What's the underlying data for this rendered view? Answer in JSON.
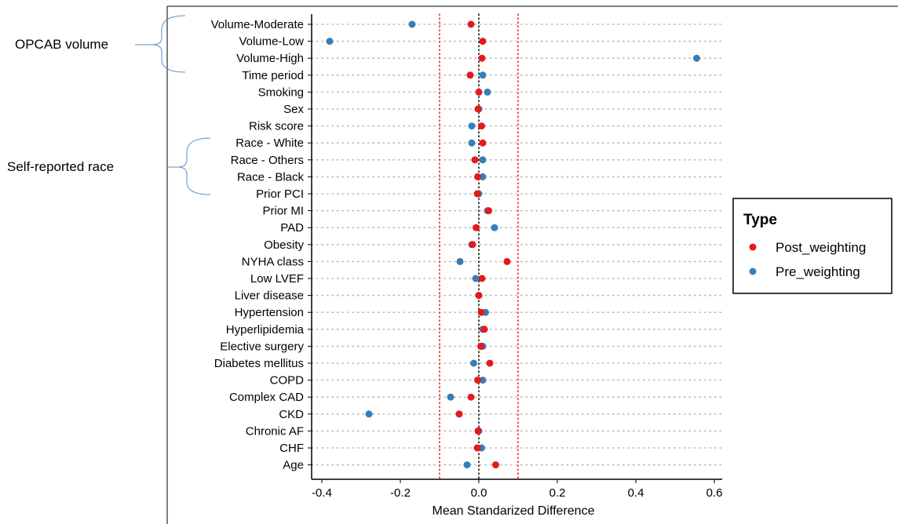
{
  "annotations": {
    "group_volume": "OPCAB volume",
    "group_race": "Self-reported race"
  },
  "chart_data": {
    "type": "scatter",
    "title": "",
    "xlabel": "Mean Standarized Difference",
    "ylabel": "",
    "xlim": [
      -0.43,
      0.6
    ],
    "xticks": [
      "-0.4",
      "-0.2",
      "0.0",
      "0.2",
      "0.4",
      "0.6"
    ],
    "xtick_values": [
      -0.4,
      -0.2,
      0.0,
      0.2,
      0.4,
      0.6
    ],
    "reference_lines": [
      -0.1,
      0.0,
      0.1
    ],
    "grid": "horizontal dotted",
    "legend_position": "right",
    "legend_title": "Type",
    "categories": [
      "Volume-Moderate",
      "Volume-Low",
      "Volume-High",
      "Time period",
      "Smoking",
      "Sex",
      "Risk score",
      "Race - White",
      "Race - Others",
      "Race - Black",
      "Prior PCI",
      "Prior MI",
      "PAD",
      "Obesity",
      "NYHA class",
      "Low LVEF",
      "Liver disease",
      "Hypertension",
      "Hyperlipidemia",
      "Elective surgery",
      "Diabetes mellitus",
      "COPD",
      "Complex CAD",
      "CKD",
      "Chronic AF",
      "CHF",
      "Age"
    ],
    "series": [
      {
        "name": "Post_weighting",
        "color": "#e41a1c",
        "values": [
          -0.02,
          0.01,
          0.008,
          -0.022,
          0.0,
          -0.002,
          0.007,
          0.01,
          -0.01,
          -0.003,
          -0.004,
          0.025,
          -0.007,
          -0.016,
          0.072,
          0.008,
          0.0,
          0.006,
          0.014,
          0.005,
          0.028,
          -0.003,
          -0.02,
          -0.05,
          -0.002,
          -0.004,
          0.043
        ]
      },
      {
        "name": "Pre_weighting",
        "color": "#377eb8",
        "values": [
          -0.17,
          -0.38,
          0.555,
          0.01,
          0.022,
          0.0,
          -0.018,
          -0.018,
          0.01,
          0.01,
          0.0,
          0.022,
          0.04,
          -0.018,
          -0.048,
          -0.008,
          0.0,
          0.017,
          0.01,
          0.01,
          -0.013,
          0.01,
          -0.072,
          -0.28,
          0.0,
          0.007,
          -0.03
        ]
      }
    ]
  }
}
